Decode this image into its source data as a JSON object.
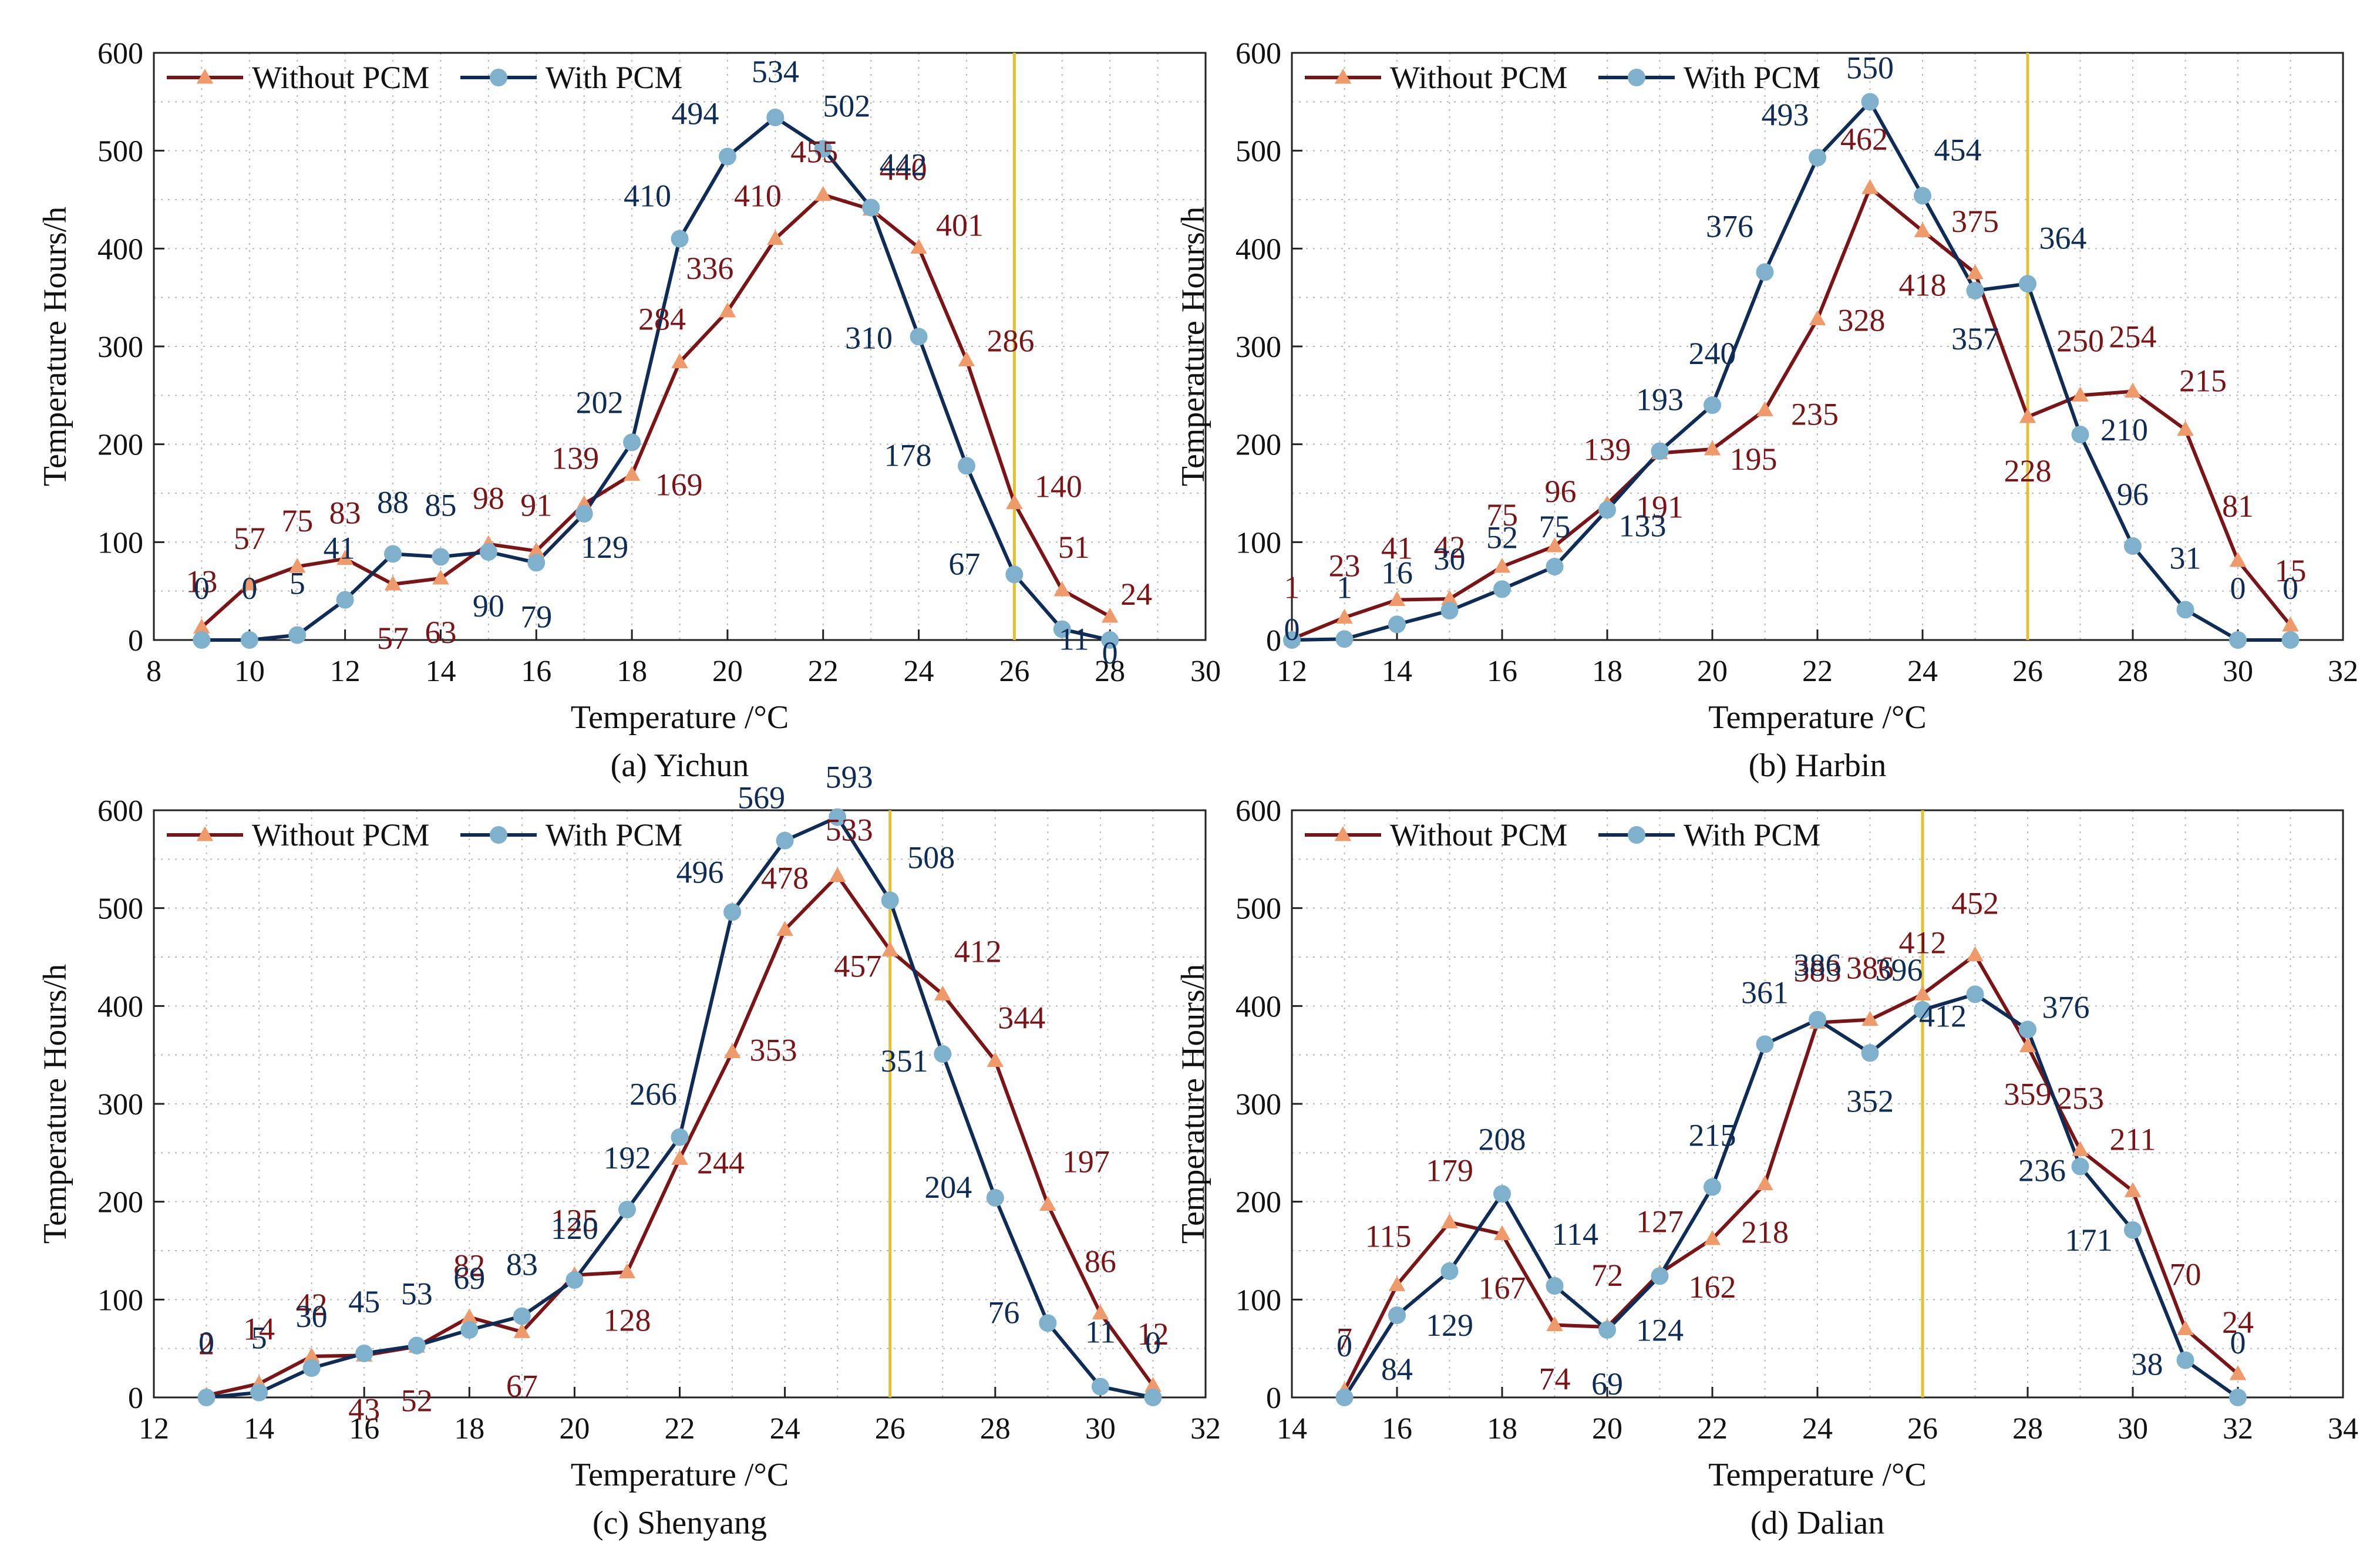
{
  "figure": {
    "panels_count": 4
  },
  "colors": {
    "without_line": "#7b1416",
    "without_marker": "#ef9a6b",
    "without_label": "#7b1416",
    "with_line": "#0e2c55",
    "with_marker": "#7fb1cc",
    "with_label": "#0e2c55",
    "vline": "#e1c233",
    "grid": "#b8b8b8",
    "axis": "#222222"
  },
  "chart_data": [
    {
      "type": "line",
      "title": "(a) Yichun",
      "xlabel": "Temperature /°C",
      "ylabel": "Temperature Hours/h",
      "xlim": [
        8,
        30
      ],
      "ylim": [
        0,
        600
      ],
      "xticks": [
        "8",
        "10",
        "12",
        "14",
        "16",
        "18",
        "20",
        "22",
        "24",
        "26",
        "28",
        "30"
      ],
      "yticks": [
        "0",
        "100",
        "200",
        "300",
        "400",
        "500",
        "600"
      ],
      "vline": 26,
      "legend": "top-left",
      "series": [
        {
          "name": "Without PCM",
          "x": [
            9,
            10,
            11,
            12,
            13,
            14,
            15,
            16,
            17,
            18,
            19,
            20,
            21,
            22,
            23,
            24,
            25,
            26,
            27,
            28
          ],
          "values": [
            13,
            57,
            75,
            83,
            57,
            63,
            98,
            91,
            139,
            169,
            284,
            336,
            410,
            455,
            440,
            401,
            286,
            140,
            51,
            24
          ]
        },
        {
          "name": "With PCM",
          "x": [
            9,
            10,
            11,
            12,
            13,
            14,
            15,
            16,
            17,
            18,
            19,
            20,
            21,
            22,
            23,
            24,
            25,
            26,
            27,
            28
          ],
          "values": [
            0,
            0,
            5,
            41,
            88,
            85,
            90,
            79,
            129,
            202,
            410,
            494,
            534,
            502,
            442,
            310,
            178,
            67,
            11,
            0
          ]
        }
      ]
    },
    {
      "type": "line",
      "title": "(b) Harbin",
      "xlabel": "Temperature /°C",
      "ylabel": "Temperature Hours/h",
      "xlim": [
        12,
        32
      ],
      "ylim": [
        0,
        600
      ],
      "xticks": [
        "12",
        "14",
        "16",
        "18",
        "20",
        "22",
        "24",
        "26",
        "28",
        "30",
        "32"
      ],
      "yticks": [
        "0",
        "100",
        "200",
        "300",
        "400",
        "500",
        "600"
      ],
      "vline": 26,
      "legend": "top-left",
      "series": [
        {
          "name": "Without PCM",
          "x": [
            12,
            13,
            14,
            15,
            16,
            17,
            18,
            19,
            20,
            21,
            22,
            23,
            24,
            25,
            26,
            27,
            28,
            29,
            30,
            31
          ],
          "values": [
            1,
            23,
            41,
            42,
            75,
            96,
            139,
            191,
            195,
            235,
            328,
            462,
            418,
            375,
            228,
            250,
            254,
            215,
            81,
            15
          ]
        },
        {
          "name": "With PCM",
          "x": [
            12,
            13,
            14,
            15,
            16,
            17,
            18,
            19,
            20,
            21,
            22,
            23,
            24,
            25,
            26,
            27,
            28,
            29,
            30,
            31
          ],
          "values": [
            0,
            1,
            16,
            30,
            52,
            75,
            133,
            193,
            240,
            376,
            493,
            550,
            454,
            357,
            364,
            210,
            96,
            31,
            0,
            0
          ]
        }
      ]
    },
    {
      "type": "line",
      "title": "(c) Shenyang",
      "xlabel": "Temperature /°C",
      "ylabel": "Temperature Hours/h",
      "xlim": [
        12,
        32
      ],
      "ylim": [
        0,
        600
      ],
      "xticks": [
        "12",
        "14",
        "16",
        "18",
        "20",
        "22",
        "24",
        "26",
        "28",
        "30",
        "32"
      ],
      "yticks": [
        "0",
        "100",
        "200",
        "300",
        "400",
        "500",
        "600"
      ],
      "vline": 26,
      "legend": "top-left",
      "series": [
        {
          "name": "Without PCM",
          "x": [
            13,
            14,
            15,
            16,
            17,
            18,
            19,
            20,
            21,
            22,
            23,
            24,
            25,
            26,
            27,
            28,
            29,
            30,
            31
          ],
          "values": [
            2,
            14,
            42,
            43,
            52,
            82,
            67,
            125,
            128,
            244,
            353,
            478,
            533,
            457,
            412,
            344,
            197,
            86,
            12
          ]
        },
        {
          "name": "With PCM",
          "x": [
            13,
            14,
            15,
            16,
            17,
            18,
            19,
            20,
            21,
            22,
            23,
            24,
            25,
            26,
            27,
            28,
            29,
            30,
            31
          ],
          "values": [
            0,
            5,
            30,
            45,
            53,
            69,
            83,
            120,
            192,
            266,
            496,
            569,
            593,
            508,
            351,
            204,
            76,
            11,
            0
          ]
        }
      ]
    },
    {
      "type": "line",
      "title": "(d) Dalian",
      "xlabel": "Temperature /°C",
      "ylabel": "Temperature Hours/h",
      "xlim": [
        14,
        34
      ],
      "ylim": [
        0,
        600
      ],
      "xticks": [
        "14",
        "16",
        "18",
        "20",
        "22",
        "24",
        "26",
        "28",
        "30",
        "32",
        "34"
      ],
      "yticks": [
        "0",
        "100",
        "200",
        "300",
        "400",
        "500",
        "600"
      ],
      "vline": 26,
      "legend": "top-left",
      "series": [
        {
          "name": "Without PCM",
          "x": [
            15,
            16,
            17,
            18,
            19,
            20,
            21,
            22,
            23,
            24,
            25,
            26,
            27,
            28,
            29,
            30,
            31,
            32
          ],
          "values": [
            7,
            115,
            179,
            167,
            74,
            72,
            127,
            162,
            218,
            383,
            386,
            412,
            452,
            359,
            253,
            211,
            70,
            24
          ]
        },
        {
          "name": "With PCM",
          "x": [
            15,
            16,
            17,
            18,
            19,
            20,
            21,
            22,
            23,
            24,
            25,
            26,
            27,
            28,
            29,
            30,
            31,
            32
          ],
          "values": [
            0,
            84,
            129,
            208,
            114,
            69,
            124,
            215,
            361,
            386,
            352,
            396,
            412,
            376,
            236,
            171,
            38,
            0
          ]
        }
      ]
    }
  ]
}
